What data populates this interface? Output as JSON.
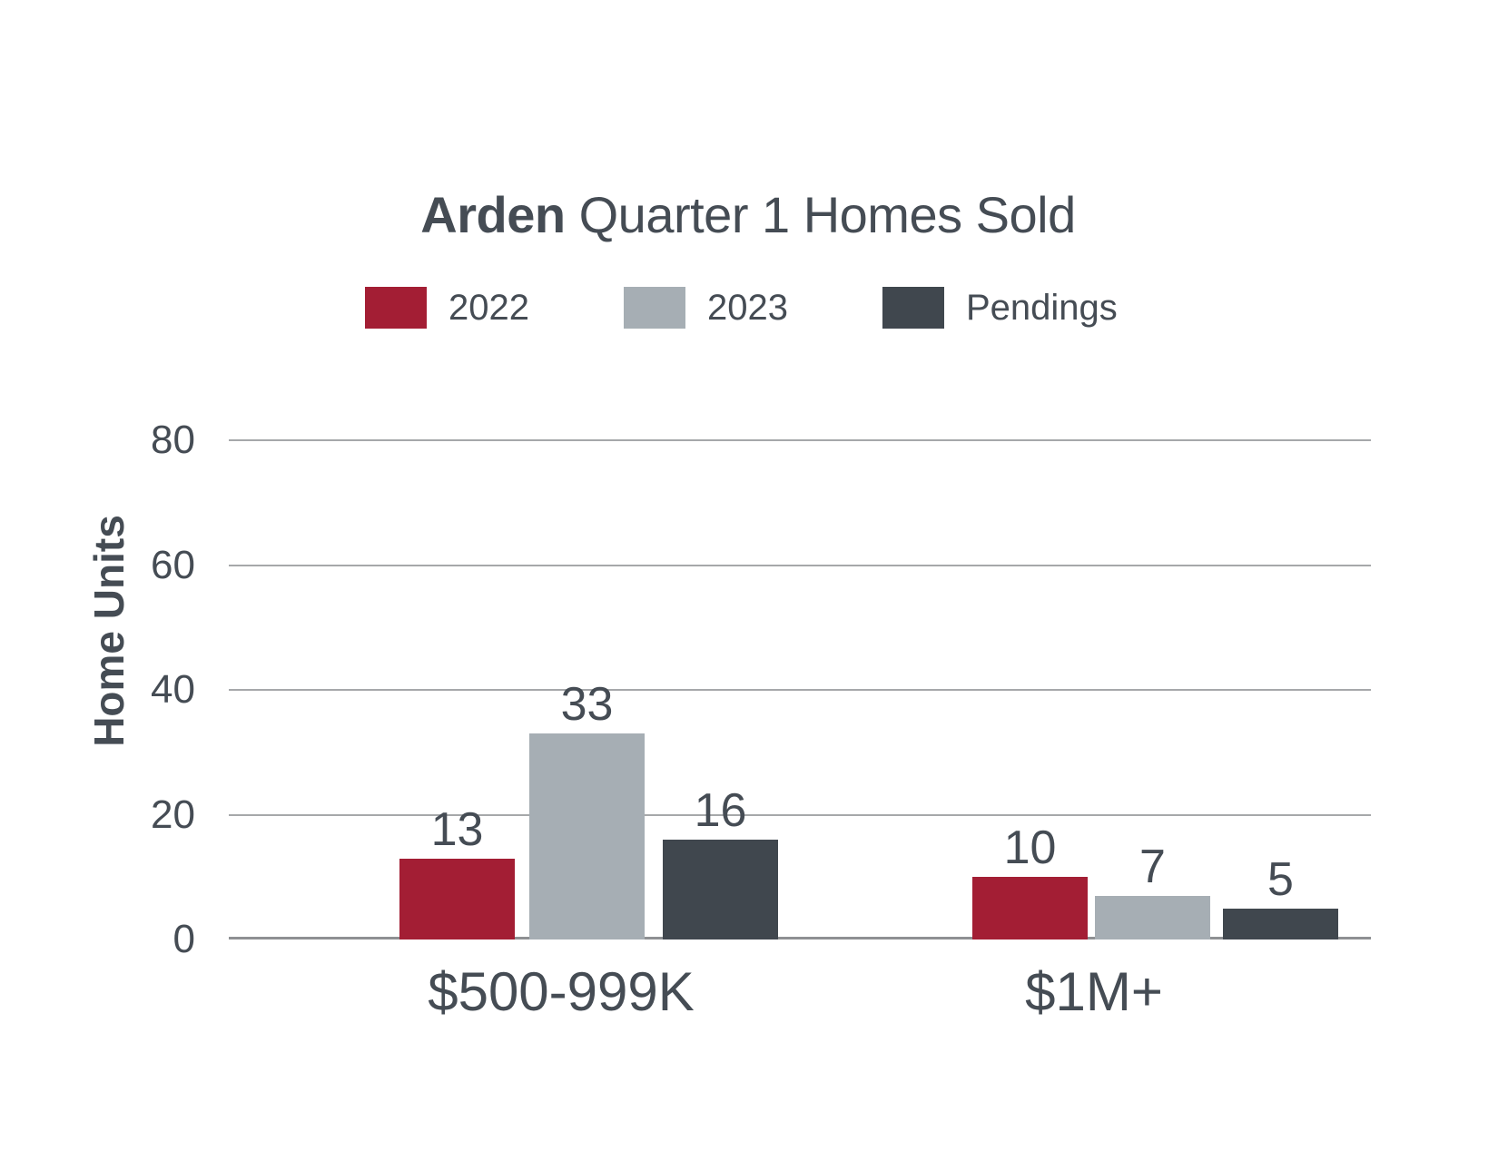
{
  "title": {
    "bold": "Arden",
    "rest": " Quarter 1 Homes Sold"
  },
  "chart_data": {
    "type": "bar",
    "title": "Arden Quarter 1 Homes Sold",
    "categories": [
      "$500-999K",
      "$1M+"
    ],
    "series": [
      {
        "name": "2022",
        "color": "#A31E34",
        "values": [
          13,
          10
        ]
      },
      {
        "name": "2023",
        "color": "#A6AEB4",
        "values": [
          33,
          7
        ]
      },
      {
        "name": "Pendings",
        "color": "#40474E",
        "values": [
          16,
          5
        ]
      }
    ],
    "ylabel": "Home Units",
    "xlabel": "",
    "yticks": [
      80,
      60,
      40,
      20,
      0
    ],
    "ylim": [
      0,
      80
    ],
    "grid": true,
    "legend_position": "top"
  },
  "colors": {
    "text": "#454C54",
    "gridline": "#A6A8AA",
    "axis_baseline": "#8E9093",
    "background": "#FFFFFF"
  }
}
